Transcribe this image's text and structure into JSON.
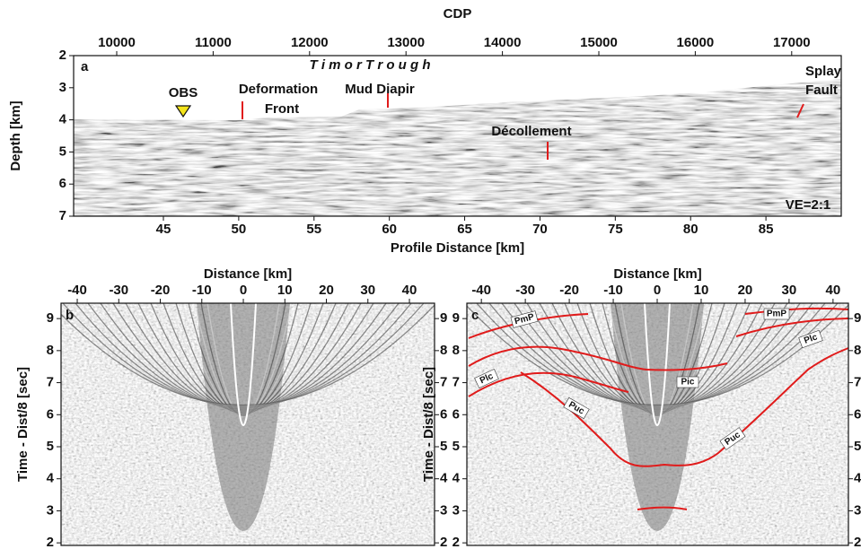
{
  "chart_data": [
    {
      "type": "seismic",
      "panel_label": "a",
      "x2_label": "CDP",
      "x_label": "Profile Distance [km]",
      "y_label": "Depth [km]",
      "x2lim": [
        9553,
        17514
      ],
      "x2ticks": [
        10000,
        11000,
        12000,
        13000,
        14000,
        15000,
        16000,
        17000
      ],
      "xlim": [
        39.04,
        90.0
      ],
      "xticks": [
        45,
        50,
        55,
        60,
        65,
        70,
        75,
        80,
        85
      ],
      "ylim": [
        7,
        2
      ],
      "yticks": [
        2,
        3,
        4,
        5,
        6,
        7
      ],
      "annotations": {
        "trough": "T i m o r   T r o u g h",
        "obs": "OBS",
        "deformation": "Deformation",
        "front": "Front",
        "mud_diapir": "Mud Diapir",
        "splay": "Splay",
        "fault": "Fault",
        "decollement": "Décollement",
        "ve": "VE=2:1"
      }
    },
    {
      "type": "seismic",
      "panel_label": "b",
      "x_label": "Distance [km]",
      "y_label": "Time - Dist/8 [sec]",
      "xlim": [
        -43.9,
        46.05
      ],
      "xticks": [
        -40,
        -30,
        -20,
        -10,
        0,
        10,
        20,
        30,
        40
      ],
      "ylim": [
        1.92,
        9.48
      ],
      "yticks": [
        2,
        3,
        4,
        5,
        6,
        7,
        8,
        9
      ],
      "y2ticks": [
        2,
        3,
        4,
        5,
        6,
        7,
        8,
        9
      ]
    },
    {
      "type": "seismic",
      "panel_label": "c",
      "x_label": "Distance [km]",
      "y_label": "Time - Dist/8 [sec]",
      "xlim": [
        -43.3,
        43.5
      ],
      "xticks": [
        -40,
        -30,
        -20,
        -10,
        0,
        10,
        20,
        30,
        40
      ],
      "ylim": [
        1.92,
        9.48
      ],
      "yticks": [
        2,
        3,
        4,
        5,
        6,
        7,
        8,
        9
      ],
      "y2ticks": [
        2,
        3,
        4,
        5,
        6,
        7,
        8,
        9
      ],
      "annotations": {
        "pmp_left": "PmP",
        "pmp_right": "PmP",
        "plc_left": "Plc",
        "plc_right": "Plc",
        "pic": "Pic",
        "puc_left": "Puc",
        "puc_right": "Puc"
      }
    }
  ]
}
